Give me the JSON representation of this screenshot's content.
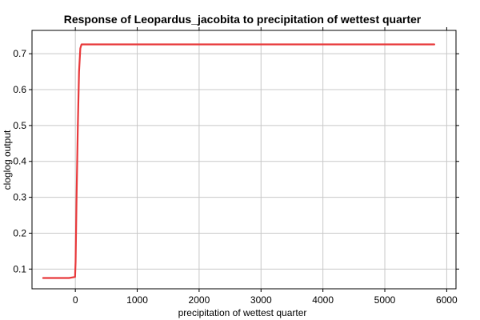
{
  "chart_data": {
    "type": "line",
    "title": "Response of Leopardus_jacobita to precipitation of wettest quarter",
    "xlabel": "precipitation of wettest quarter",
    "ylabel": "cloglog output",
    "xlim": [
      -700,
      6150
    ],
    "ylim": [
      0.045,
      0.765
    ],
    "x_ticks": [
      0,
      1000,
      2000,
      3000,
      4000,
      5000,
      6000
    ],
    "y_ticks": [
      0.1,
      0.2,
      0.3,
      0.4,
      0.5,
      0.6,
      0.7
    ],
    "x_tick_labels": [
      "0",
      "1000",
      "2000",
      "3000",
      "4000",
      "5000",
      "6000"
    ],
    "y_tick_labels": [
      "0.1",
      "0.2",
      "0.3",
      "0.4",
      "0.5",
      "0.6",
      "0.7"
    ],
    "grid": true,
    "series": [
      {
        "color": "#e8393b",
        "x": [
          -520,
          -100,
          -5,
          5,
          20,
          40,
          60,
          80,
          100,
          5800
        ],
        "y": [
          0.075,
          0.075,
          0.078,
          0.12,
          0.3,
          0.5,
          0.65,
          0.715,
          0.726,
          0.726
        ]
      }
    ]
  }
}
